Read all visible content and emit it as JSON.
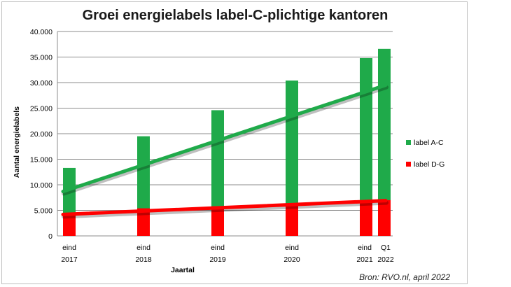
{
  "chart_data": {
    "type": "bar",
    "title": "Groei energielabels label-C-plichtige kantoren",
    "xlabel": "Jaartal",
    "ylabel": "Aantal energielabels",
    "ylim": [
      0,
      40000
    ],
    "yticks": [
      "0",
      "5.000",
      "10.000",
      "15.000",
      "20.000",
      "25.000",
      "30.000",
      "35.000",
      "40.000"
    ],
    "grid": true,
    "legend_position": "right",
    "categories": [
      {
        "line1": "eind",
        "line2": "2017"
      },
      {
        "line1": "eind",
        "line2": "2018"
      },
      {
        "line1": "eind",
        "line2": "2019"
      },
      {
        "line1": "eind",
        "line2": "2020"
      },
      {
        "line1": "eind",
        "line2": "2021"
      },
      {
        "line1": "Q1",
        "line2": "2022"
      }
    ],
    "series": [
      {
        "name": "label A-C",
        "color": "#1faa4a",
        "values": [
          13300,
          19500,
          24600,
          30400,
          34800,
          36600
        ]
      },
      {
        "name": "label D-G",
        "color": "#ff0000",
        "values": [
          4300,
          5400,
          5800,
          6300,
          6800,
          7000
        ]
      }
    ],
    "trendlines": [
      {
        "series": "label A-C",
        "color": "#1faa4a",
        "start": 8700,
        "end": 29500
      },
      {
        "series": "label D-G",
        "color": "#ff0000",
        "start": 4200,
        "end": 6900
      }
    ]
  },
  "source_note": "Bron: RVO.nl, april 2022"
}
